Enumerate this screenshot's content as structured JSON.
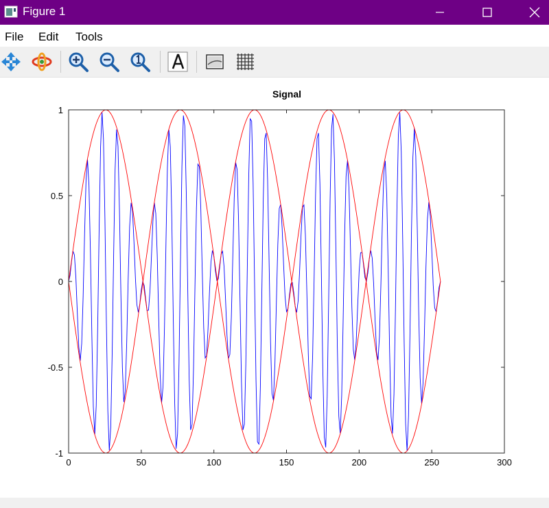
{
  "window": {
    "title": "Figure 1",
    "icons": [
      "app-icon",
      "minimize-icon",
      "maximize-icon",
      "close-icon"
    ],
    "titlebar_color": "#6e0085"
  },
  "menu": {
    "items": [
      "File",
      "Edit",
      "Tools"
    ]
  },
  "toolbar": {
    "tools": [
      "pan-icon",
      "rotate-icon",
      "zoom-in-icon",
      "zoom-out-icon",
      "zoom-reset-icon",
      "text-annotation-icon",
      "axes-icon",
      "grid-icon"
    ]
  },
  "chart_data": {
    "type": "line",
    "title": "Signal",
    "xlabel": "",
    "ylabel": "",
    "xlim": [
      0,
      300
    ],
    "ylim": [
      -1,
      1
    ],
    "xticks": [
      "0",
      "50",
      "100",
      "150",
      "200",
      "250",
      "300"
    ],
    "yticks": [
      "1",
      "0.5",
      "0",
      "-0.5",
      "-1"
    ],
    "grid": false,
    "legend": "none",
    "series": [
      {
        "color": "#0000ff",
        "x_range": [
          0,
          256
        ],
        "samples": 257,
        "formula": "sin(2*pi*x/102.4) * sin(2*pi*x/10.24)"
      },
      {
        "color": "#ff0000",
        "x_range": [
          0,
          256
        ],
        "samples": 257,
        "formula": "+/- sin(2*pi*x/102.4)"
      }
    ]
  }
}
